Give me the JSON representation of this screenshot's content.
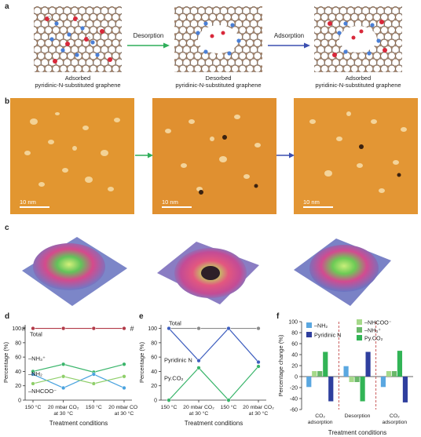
{
  "panel_labels": {
    "a": "a",
    "b": "b",
    "c": "c",
    "d": "d",
    "e": "e",
    "f": "f"
  },
  "panel_a": {
    "captions": [
      {
        "line1": "Adsorbed",
        "line2": "pyridinic-N-substituted graphene"
      },
      {
        "line1": "Desorbed",
        "line2": "pyridinic-N-substituted graphene"
      },
      {
        "line1": "Adsorbed",
        "line2": "pyridinic-N-substituted graphene"
      }
    ],
    "arrows": [
      {
        "label": "Desorption",
        "color": "#2fae5a"
      },
      {
        "label": "Adsorption",
        "color": "#3b4fb0"
      }
    ]
  },
  "panel_b": {
    "scale_bars": [
      "10 nm",
      "10 nm",
      "10 nm"
    ],
    "arrow_colors": [
      "#2fae5a",
      "#3b4fb0"
    ]
  },
  "chart_data": [
    {
      "panel": "d",
      "type": "line",
      "xlabel": "Treatment conditions",
      "ylabel": "Percentage (%)",
      "ylim": [
        0,
        105
      ],
      "yticks": [
        0,
        20,
        40,
        60,
        80,
        100
      ],
      "categories": [
        "150 °C",
        "20 mbar CO2 at 30 °C",
        "150 °C",
        "20 mbar CO2 at 30 °C"
      ],
      "category_labels": [
        {
          "line1": "150 °C",
          "line2": ""
        },
        {
          "line1": "20 mbar CO₂",
          "line2": "at 30 °C"
        },
        {
          "line1": "150 °C",
          "line2": ""
        },
        {
          "line1": "20 mbar CO₂",
          "line2": "at 30 °C"
        }
      ],
      "axis_break": "#",
      "series": [
        {
          "name": "Total",
          "color": "#b23a48",
          "values": [
            100,
            100,
            100,
            100
          ]
        },
        {
          "name": "–NH₃⁺",
          "color": "#3ab56b",
          "values": [
            40,
            50,
            39,
            50
          ]
        },
        {
          "name": "–NH₂",
          "color": "#4aa3df",
          "values": [
            36,
            17,
            36,
            17
          ]
        },
        {
          "name": "–NHCOO⁻",
          "color": "#8fcf6a",
          "values": [
            23,
            33,
            23,
            33
          ]
        }
      ]
    },
    {
      "panel": "e",
      "type": "line",
      "xlabel": "Treatment conditions",
      "ylabel": "Percentage (%)",
      "ylim": [
        0,
        105
      ],
      "yticks": [
        0,
        20,
        40,
        60,
        80,
        100
      ],
      "categories": [
        "150 °C",
        "20 mbar CO2 at 30 °C",
        "150 °C",
        "20 mbar CO2 at 30 °C"
      ],
      "category_labels": [
        {
          "line1": "150 °C",
          "line2": ""
        },
        {
          "line1": "20 mbar CO₂",
          "line2": "at 30 °C"
        },
        {
          "line1": "150 °C",
          "line2": ""
        },
        {
          "line1": "20 mbar CO₂",
          "line2": "at 30 °C"
        }
      ],
      "series": [
        {
          "name": "Total",
          "color": "#8a8a8a",
          "values": [
            100,
            100,
            100,
            100
          ]
        },
        {
          "name": "Pyridinic N",
          "color": "#3f5fbf",
          "values": [
            100,
            55,
            100,
            53
          ]
        },
        {
          "name": "Py.CO₂",
          "color": "#3ab56b",
          "values": [
            0,
            45,
            0,
            47
          ]
        }
      ]
    },
    {
      "panel": "f",
      "type": "bar",
      "xlabel": "Treatment conditions",
      "ylabel": "Percentage change (%)",
      "ylim": [
        -60,
        100
      ],
      "yticks": [
        -60,
        -40,
        -20,
        0,
        20,
        40,
        60,
        80,
        100
      ],
      "categories": [
        "CO2 adsorption",
        "Desorption",
        "CO2 adsorption"
      ],
      "category_labels": [
        {
          "line1": "CO₂",
          "line2": "adsorption"
        },
        {
          "line1": "Desorption",
          "line2": ""
        },
        {
          "line1": "CO₂",
          "line2": "adsorption"
        }
      ],
      "series": [
        {
          "name": "–NH₂",
          "color": "#5aa7e0",
          "values": [
            -19,
            19,
            -19
          ]
        },
        {
          "name": "–NHCOO⁻",
          "color": "#a6d98a",
          "values": [
            10,
            -10,
            10
          ]
        },
        {
          "name": "–NH₃⁺",
          "color": "#6ab86a",
          "values": [
            10,
            -10,
            10
          ]
        },
        {
          "name": "Py.CO₂",
          "color": "#32b456",
          "values": [
            45,
            -45,
            47
          ]
        },
        {
          "name": "Pyridinic N",
          "color": "#2f3f9e",
          "values": [
            -45,
            45,
            -47
          ]
        }
      ],
      "legend_order": [
        "–NH₂",
        "Pyridinic N",
        "–NHCOO⁻",
        "–NH₃⁺",
        "Py.CO₂"
      ]
    }
  ]
}
